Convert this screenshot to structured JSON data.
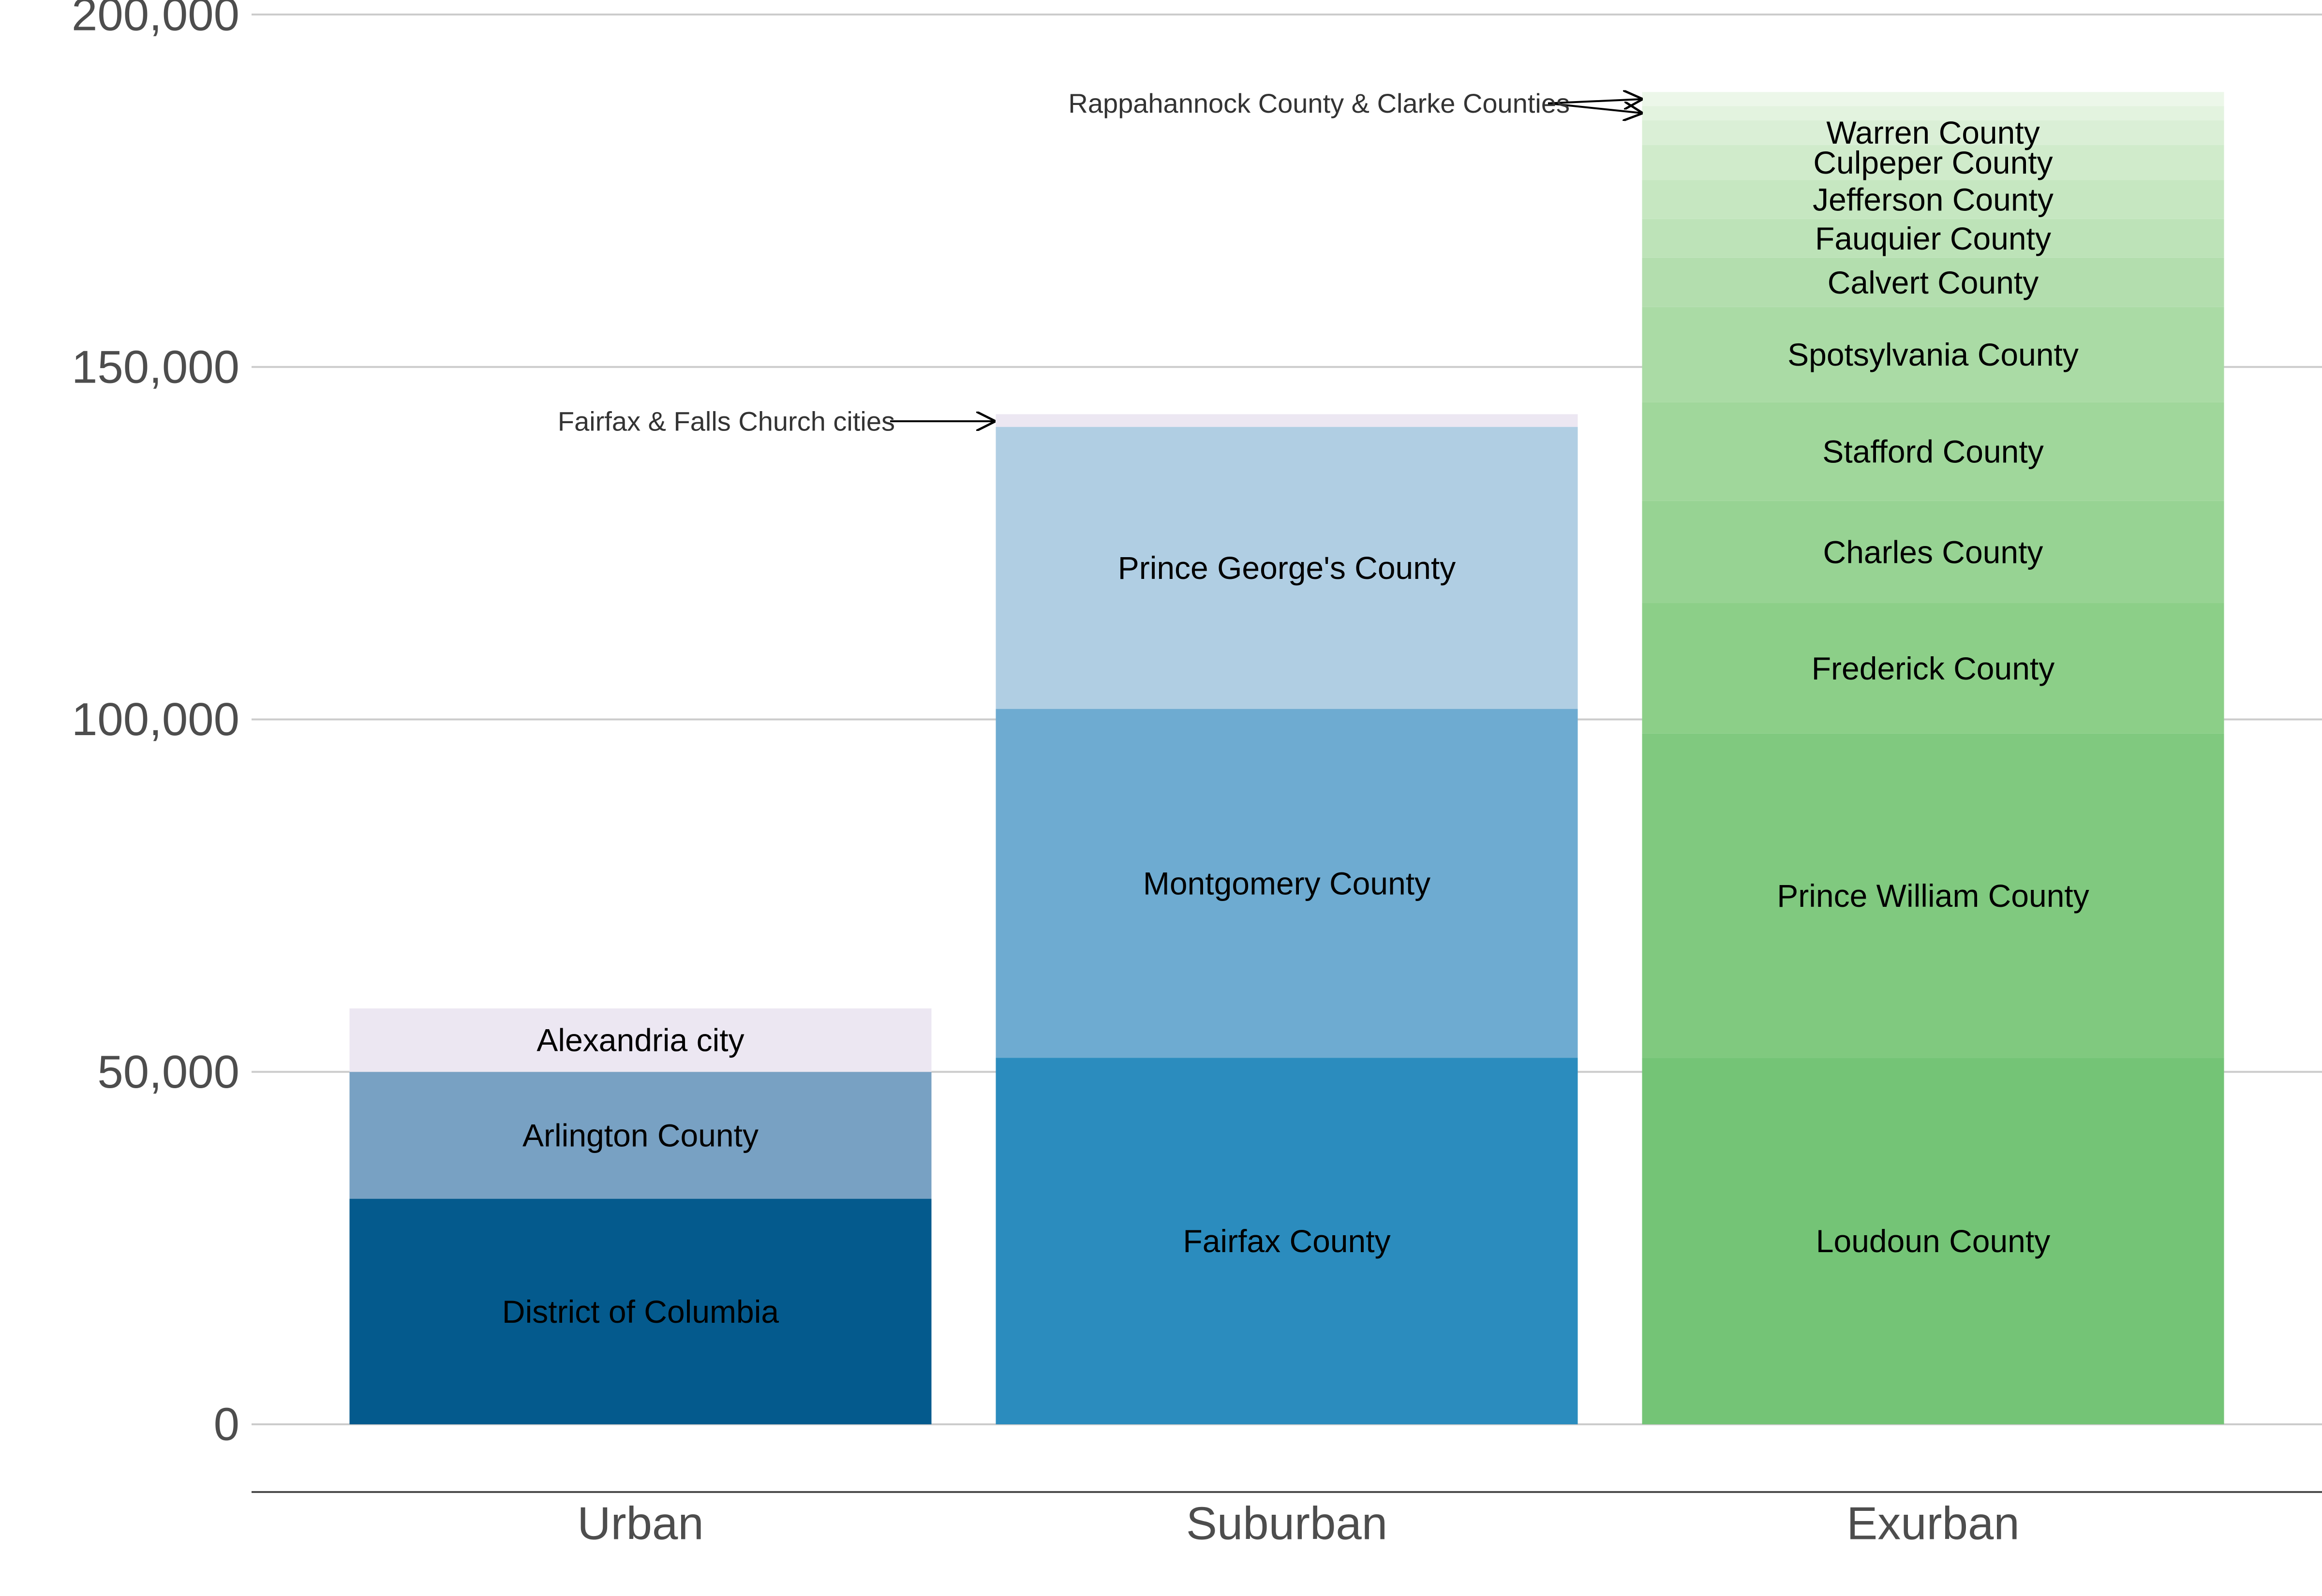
{
  "chart_data": {
    "type": "bar",
    "stacked": true,
    "categories": [
      "Urban",
      "Suburban",
      "Exurban"
    ],
    "ylim": [
      0,
      200000
    ],
    "yticks": [
      0,
      50000,
      100000,
      150000,
      200000
    ],
    "ytick_labels": [
      "0",
      "50,000",
      "100,000",
      "150,000",
      "200,000"
    ],
    "grid": "horizontal",
    "legend": "none",
    "stacks": [
      {
        "category": "Urban",
        "segments": [
          {
            "name": "District of Columbia",
            "value": 32000,
            "color": "#045a8d",
            "label": "District of Columbia"
          },
          {
            "name": "Arlington County",
            "value": 18000,
            "color": "#78a1c3",
            "label": "Arlington County"
          },
          {
            "name": "Alexandria city",
            "value": 9000,
            "color": "#ece7f2",
            "label": "Alexandria city"
          }
        ]
      },
      {
        "category": "Suburban",
        "segments": [
          {
            "name": "Fairfax County",
            "value": 52000,
            "color": "#2b8cbe",
            "label": "Fairfax County"
          },
          {
            "name": "Montgomery County",
            "value": 49500,
            "color": "#6eabd1",
            "label": "Montgomery County"
          },
          {
            "name": "Prince George's County",
            "value": 40000,
            "color": "#b0cee3",
            "label": "Prince George's County"
          },
          {
            "name": "Fairfax & Falls Church cities",
            "value": 1800,
            "color": "#ece7f2",
            "label": ""
          }
        ]
      },
      {
        "category": "Exurban",
        "segments": [
          {
            "name": "Loudoun County",
            "value": 52000,
            "color": "#74c476",
            "label": "Loudoun County"
          },
          {
            "name": "Prince William County",
            "value": 46000,
            "color": "#80c97f",
            "label": "Prince William County"
          },
          {
            "name": "Frederick County",
            "value": 18500,
            "color": "#8ccf88",
            "label": "Frederick County"
          },
          {
            "name": "Charles County",
            "value": 14500,
            "color": "#97d393",
            "label": "Charles County"
          },
          {
            "name": "Stafford County",
            "value": 14000,
            "color": "#a0d79b",
            "label": "Stafford County"
          },
          {
            "name": "Spotsylvania County",
            "value": 13500,
            "color": "#aadba5",
            "label": "Spotsylvania County"
          },
          {
            "name": "Calvert County",
            "value": 7000,
            "color": "#b3deae",
            "label": "Calvert County"
          },
          {
            "name": "Fauquier County",
            "value": 5500,
            "color": "#bde3b8",
            "label": "Fauquier County"
          },
          {
            "name": "Jefferson County",
            "value": 5500,
            "color": "#c6e7c1",
            "label": "Jefferson County"
          },
          {
            "name": "Culpeper County",
            "value": 5000,
            "color": "#d0ebcb",
            "label": "Culpeper County"
          },
          {
            "name": "Warren County",
            "value": 3500,
            "color": "#daefd6",
            "label": "Warren County"
          },
          {
            "name": "Rappahannock County",
            "value": 2000,
            "color": "#e3f3df",
            "label": ""
          },
          {
            "name": "Clarke County",
            "value": 2000,
            "color": "#ecf7e9",
            "label": ""
          }
        ]
      }
    ],
    "annotations": [
      {
        "text": "Fairfax & Falls Church cities",
        "category": "Suburban",
        "value": 142300
      },
      {
        "text": "Rappahannock County & Clarke Counties",
        "category": "Exurban",
        "value": [
          188000,
          186000
        ]
      }
    ]
  }
}
